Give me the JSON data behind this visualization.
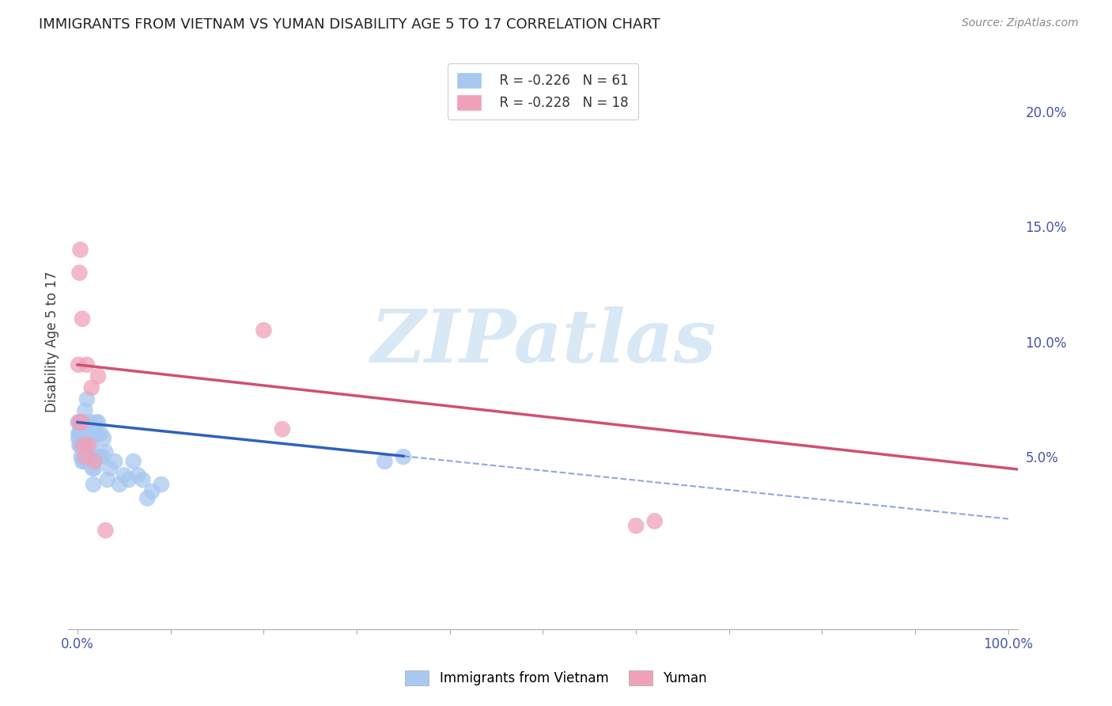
{
  "title": "IMMIGRANTS FROM VIETNAM VS YUMAN DISABILITY AGE 5 TO 17 CORRELATION CHART",
  "source": "Source: ZipAtlas.com",
  "ylabel": "Disability Age 5 to 17",
  "legend_label1": "Immigrants from Vietnam",
  "legend_label2": "Yuman",
  "r1": -0.226,
  "n1": 61,
  "r2": -0.228,
  "n2": 18,
  "color_blue": "#a8c8f0",
  "color_pink": "#f0a0b8",
  "line_blue": "#3060c0",
  "line_pink": "#d05070",
  "xlim": [
    -0.01,
    1.01
  ],
  "ylim": [
    -0.025,
    0.225
  ],
  "yticks_right": [
    0.05,
    0.1,
    0.15,
    0.2
  ],
  "yticklabels_right": [
    "5.0%",
    "10.0%",
    "15.0%",
    "20.0%"
  ],
  "blue_scatter_x": [
    0.0005,
    0.001,
    0.001,
    0.002,
    0.002,
    0.002,
    0.003,
    0.003,
    0.003,
    0.003,
    0.004,
    0.004,
    0.004,
    0.004,
    0.005,
    0.005,
    0.005,
    0.005,
    0.006,
    0.006,
    0.006,
    0.007,
    0.007,
    0.008,
    0.008,
    0.008,
    0.009,
    0.009,
    0.01,
    0.01,
    0.011,
    0.012,
    0.013,
    0.013,
    0.014,
    0.015,
    0.016,
    0.017,
    0.018,
    0.02,
    0.021,
    0.022,
    0.024,
    0.025,
    0.027,
    0.028,
    0.03,
    0.032,
    0.035,
    0.04,
    0.045,
    0.05,
    0.055,
    0.06,
    0.065,
    0.07,
    0.075,
    0.08,
    0.09,
    0.33,
    0.35
  ],
  "blue_scatter_y": [
    0.065,
    0.06,
    0.058,
    0.065,
    0.06,
    0.055,
    0.065,
    0.062,
    0.058,
    0.055,
    0.063,
    0.06,
    0.055,
    0.05,
    0.065,
    0.062,
    0.055,
    0.048,
    0.065,
    0.06,
    0.05,
    0.055,
    0.048,
    0.07,
    0.062,
    0.055,
    0.06,
    0.048,
    0.075,
    0.058,
    0.05,
    0.06,
    0.065,
    0.05,
    0.05,
    0.055,
    0.045,
    0.038,
    0.045,
    0.065,
    0.06,
    0.065,
    0.05,
    0.06,
    0.05,
    0.058,
    0.052,
    0.04,
    0.045,
    0.048,
    0.038,
    0.042,
    0.04,
    0.048,
    0.042,
    0.04,
    0.032,
    0.035,
    0.038,
    0.048,
    0.05
  ],
  "pink_scatter_x": [
    0.001,
    0.002,
    0.002,
    0.003,
    0.004,
    0.005,
    0.006,
    0.008,
    0.01,
    0.012,
    0.015,
    0.018,
    0.022,
    0.03,
    0.2,
    0.22,
    0.6,
    0.62
  ],
  "pink_scatter_y": [
    0.09,
    0.13,
    0.065,
    0.14,
    0.065,
    0.11,
    0.055,
    0.05,
    0.09,
    0.055,
    0.08,
    0.048,
    0.085,
    0.018,
    0.105,
    0.062,
    0.02,
    0.022
  ],
  "blue_line_intercept": 0.065,
  "blue_line_slope": -0.042,
  "blue_line_solid_end": 0.35,
  "pink_line_intercept": 0.09,
  "pink_line_slope": -0.045,
  "pink_line_solid_end": 1.01,
  "watermark": "ZIPatlas",
  "watermark_color": "#d8e8f5",
  "background_color": "#ffffff",
  "grid_color": "#e0e0e0"
}
